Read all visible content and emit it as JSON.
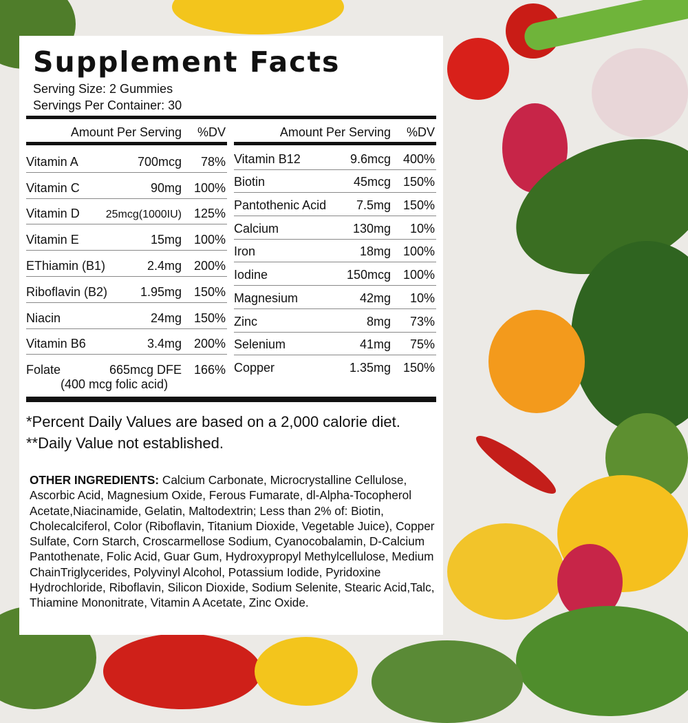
{
  "title": "Supplement Facts",
  "serving_size": "Serving Size: 2 Gummies",
  "servings_per_container": "Servings Per Container: 30",
  "header": {
    "amount": "Amount Per Serving",
    "dv": "%DV"
  },
  "left_rows": [
    {
      "name": "Vitamin A",
      "amount": "700mcg",
      "dv": "78%"
    },
    {
      "name": "Vitamin C",
      "amount": "90mg",
      "dv": "100%"
    },
    {
      "name": "Vitamin D",
      "amount": "25mcg(1000IU)",
      "dv": "125%"
    },
    {
      "name": "Vitamin E",
      "amount": "15mg",
      "dv": "100%"
    },
    {
      "name": "EThiamin (B1)",
      "amount": "2.4mg",
      "dv": "200%"
    },
    {
      "name": "Riboflavin (B2)",
      "amount": "1.95mg",
      "dv": "150%"
    },
    {
      "name": "Niacin",
      "amount": "24mg",
      "dv": "150%"
    },
    {
      "name": "Vitamin B6",
      "amount": "3.4mg",
      "dv": "200%"
    },
    {
      "name": "Folate",
      "amount": "665mcg DFE",
      "dv": "166%"
    }
  ],
  "folate_note": "(400 mcg folic acid)",
  "right_rows": [
    {
      "name": "Vitamin B12",
      "amount": "9.6mcg",
      "dv": "400%"
    },
    {
      "name": "Biotin",
      "amount": "45mcg",
      "dv": "150%"
    },
    {
      "name": "Pantothenic Acid",
      "amount": "7.5mg",
      "dv": "150%"
    },
    {
      "name": "Calcium",
      "amount": "130mg",
      "dv": "10%"
    },
    {
      "name": "Iron",
      "amount": "18mg",
      "dv": "100%"
    },
    {
      "name": "Iodine",
      "amount": "150mcg",
      "dv": "100%"
    },
    {
      "name": "Magnesium",
      "amount": "42mg",
      "dv": "10%"
    },
    {
      "name": "Zinc",
      "amount": "8mg",
      "dv": "73%"
    },
    {
      "name": "Selenium",
      "amount": "41mg",
      "dv": "75%"
    },
    {
      "name": "Copper",
      "amount": "1.35mg",
      "dv": "150%"
    }
  ],
  "footnote_1": "*Percent Daily Values are based on a 2,000 calorie diet.",
  "footnote_2": "**Daily Value not established.",
  "ingredients_label": "OTHER INGREDIENTS:",
  "ingredients_text": " Calcium Carbonate, Microcrystalline Cellulose, Ascorbic Acid, Magnesium Oxide, Ferous Fumarate, dl-Alpha-Tocopherol Acetate,Niacinamide, Gelatin, Maltodextrin; Less than 2% of: Biotin, Cholecalciferol, Color (Riboflavin, Titanium Dioxide, Vegetable Juice), Copper Sulfate, Corn Starch, Croscarmellose Sodium, Cyanocobalamin, D-Calcium Pantothenate, Folic Acid, Guar Gum, Hydroxypropyl Methylcellulose, Medium ChainTriglycerides, Polyvinyl Alcohol, Potassium Iodide, Pyridoxine Hydrochloride, Riboflavin, Silicon Dioxide, Sodium Selenite, Stearic Acid,Talc, Thiamine Mononitrate, Vitamin A Acetate, Zinc Oxide.",
  "colors": {
    "panel": "#ffffff",
    "text": "#111111",
    "background": "#eceae6"
  }
}
